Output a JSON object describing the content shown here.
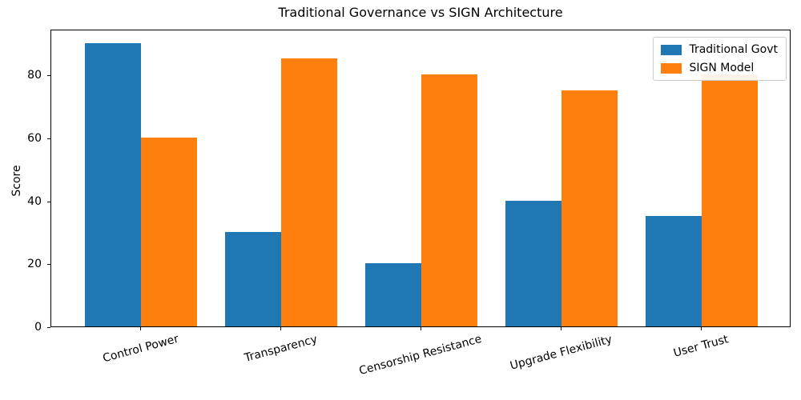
{
  "chart_data": {
    "type": "bar",
    "title": "Traditional Governance vs SIGN Architecture",
    "xlabel": "",
    "ylabel": "Score",
    "categories": [
      "Control Power",
      "Transparency",
      "Censorship Resistance",
      "Upgrade Flexibility",
      "User Trust"
    ],
    "series": [
      {
        "name": "Traditional Govt",
        "color": "#1f77b4",
        "values": [
          90,
          30,
          20,
          40,
          35
        ]
      },
      {
        "name": "SIGN Model",
        "color": "#ff7f0e",
        "values": [
          60,
          85,
          80,
          75,
          80
        ]
      }
    ],
    "yticks": [
      0,
      20,
      40,
      60,
      80
    ],
    "ylim": [
      0,
      94.5
    ],
    "grid": false,
    "legend_position": "upper right",
    "xtick_rotation_deg": 15,
    "background_color": "#ffffff",
    "axis_color": "#000000"
  }
}
